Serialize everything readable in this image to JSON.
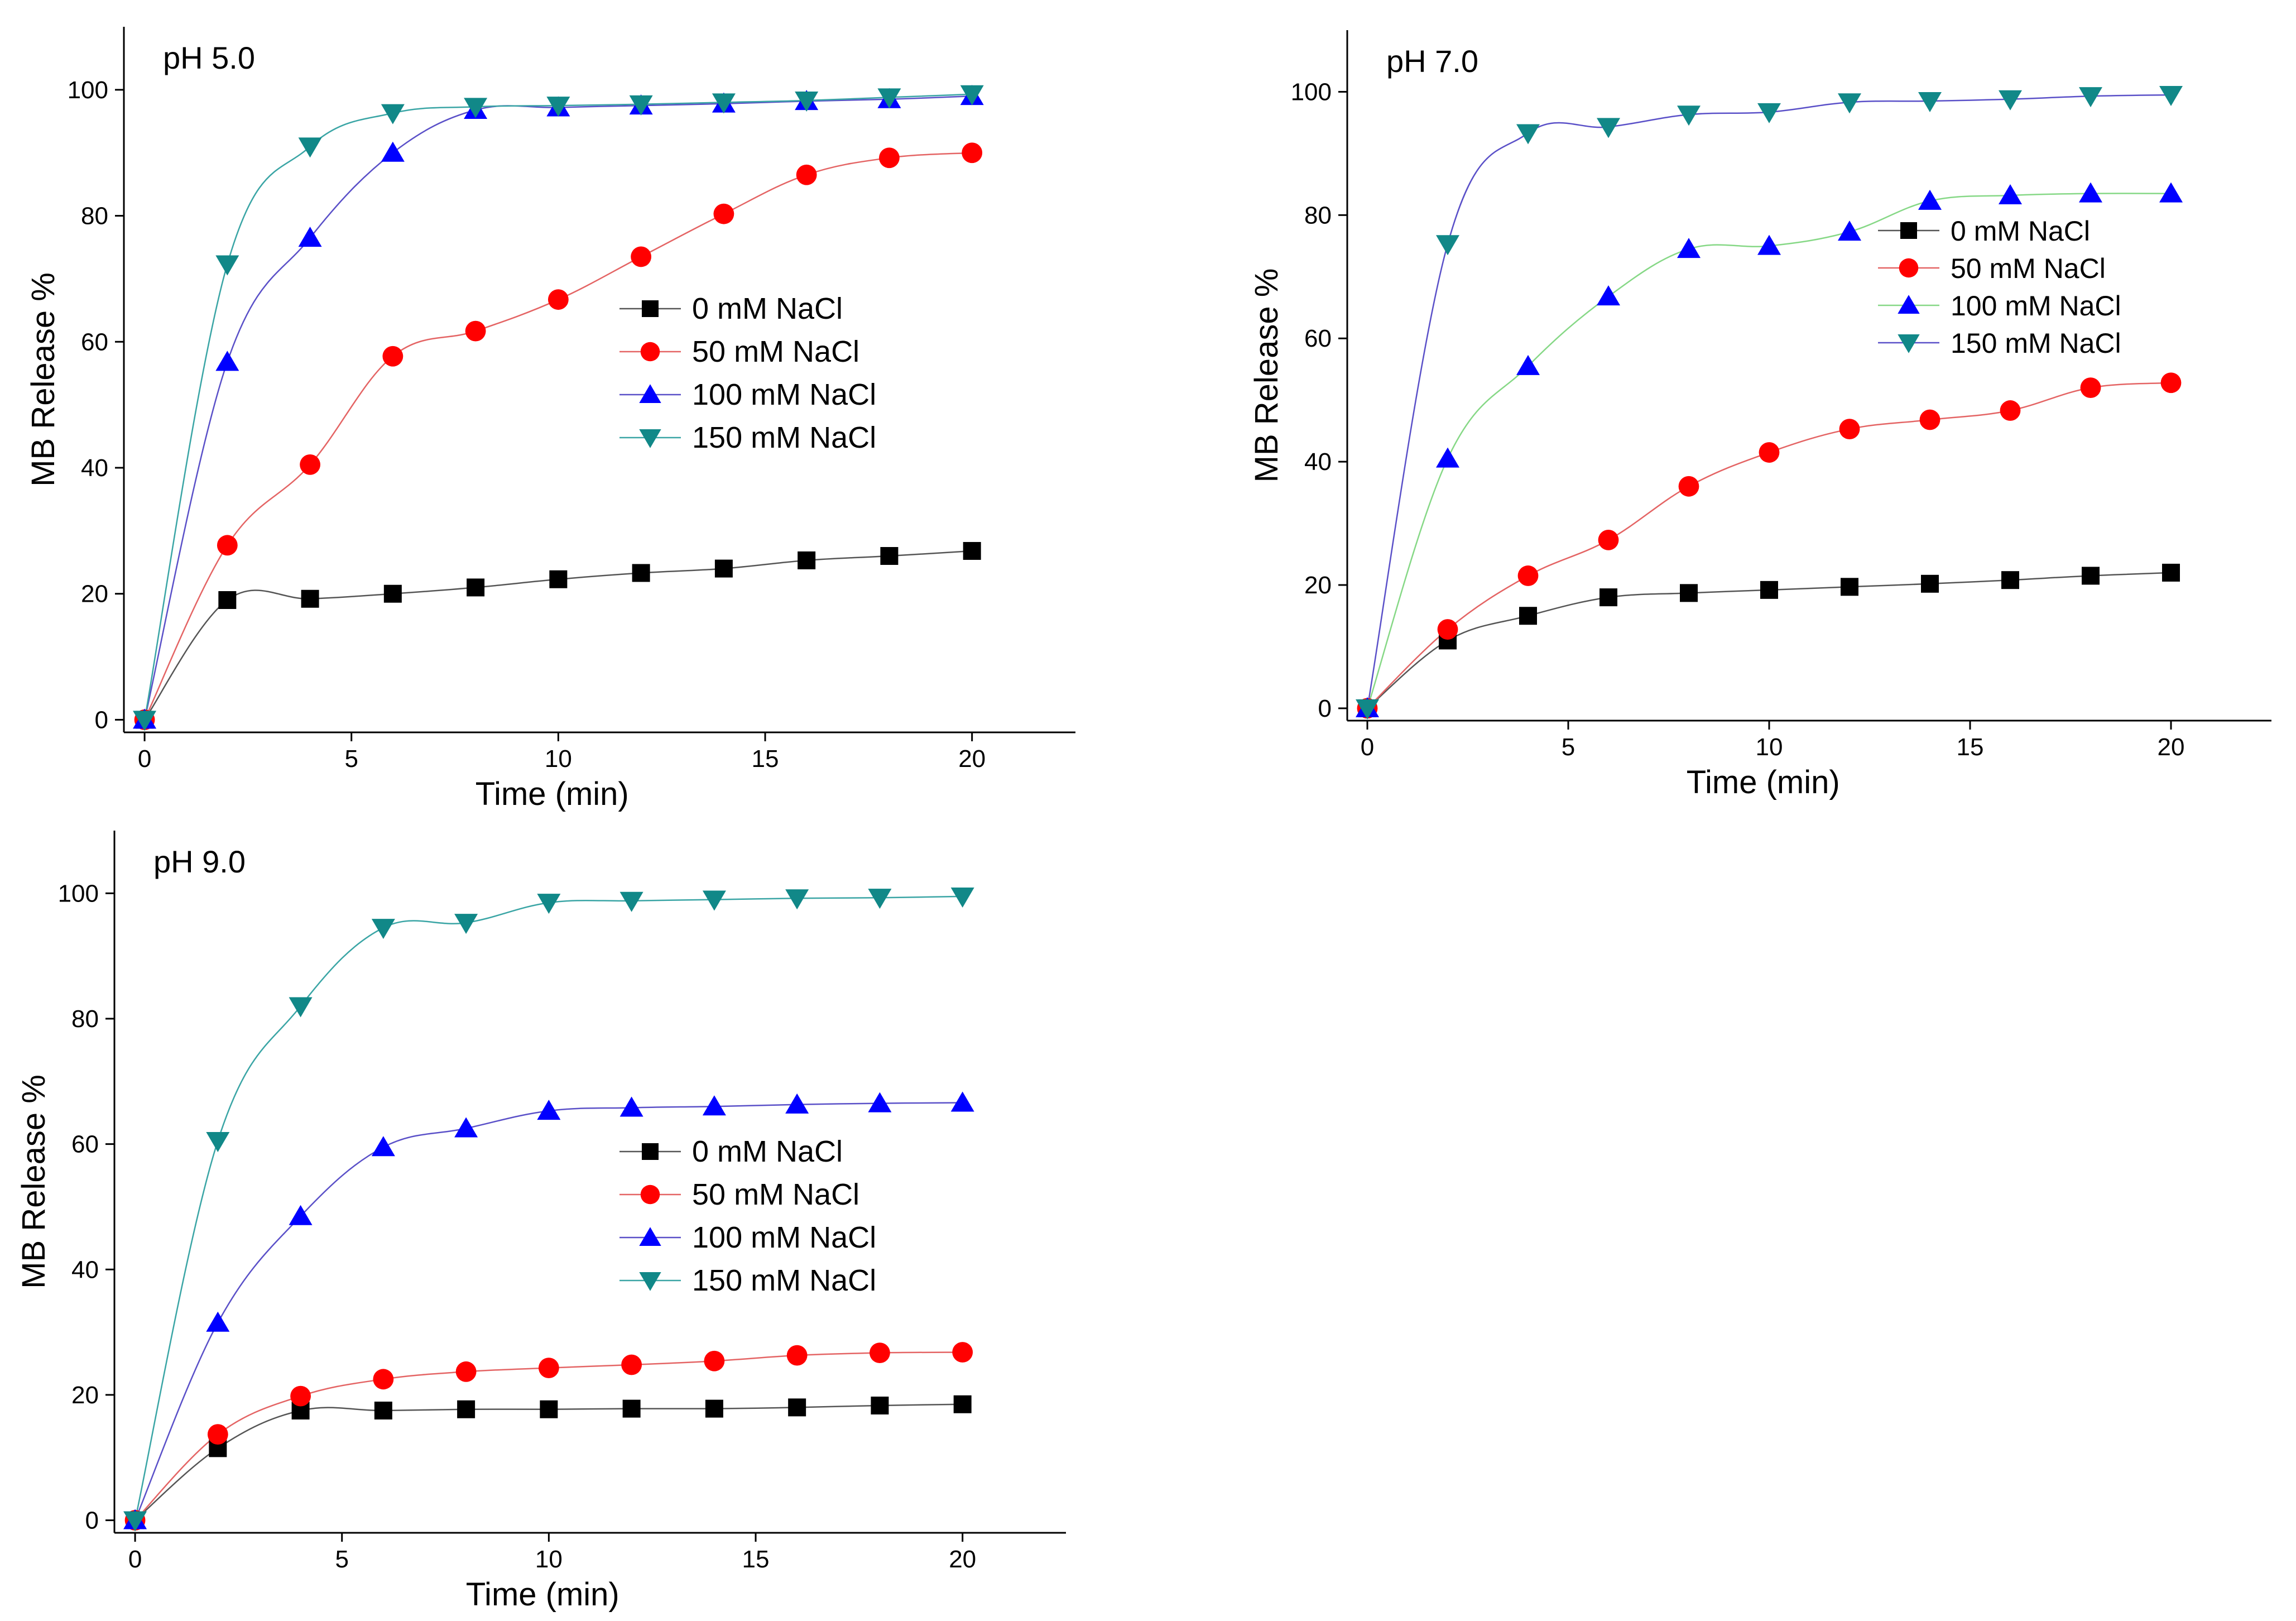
{
  "chart_data": [
    {
      "type": "line",
      "title": "pH 5.0",
      "xlabel": "Time (min)",
      "ylabel": "MB Release %",
      "xlim": [
        -0.5,
        22.5
      ],
      "ylim": [
        -2,
        110
      ],
      "xticks": [
        "0",
        "5",
        "10",
        "15",
        "20"
      ],
      "yticks": [
        "0",
        "20",
        "40",
        "60",
        "80",
        "100"
      ],
      "grid": false,
      "legend_position": "center-right",
      "x": [
        0,
        2,
        4,
        6,
        8,
        10,
        12,
        14,
        16,
        18,
        20
      ],
      "series": [
        {
          "name": "0 mM NaCl",
          "marker": "square",
          "color": "#000000",
          "line_color": "#555555",
          "values": [
            0,
            19,
            19.2,
            20,
            21,
            22.3,
            23.3,
            24,
            25.3,
            26,
            26.8
          ]
        },
        {
          "name": "50 mM NaCl",
          "marker": "circle",
          "color": "#ff0000",
          "line_color": "#e46464",
          "values": [
            0,
            27.7,
            40.5,
            57.7,
            61.7,
            66.7,
            73.5,
            80.3,
            86.5,
            89.2,
            90
          ]
        },
        {
          "name": "100 mM NaCl",
          "marker": "triangle-up",
          "color": "#0000ff",
          "line_color": "#5a50c8",
          "values": [
            0,
            56.8,
            76.5,
            90,
            96.8,
            97.2,
            97.5,
            97.8,
            98.2,
            98.5,
            99
          ]
        },
        {
          "name": "150 mM NaCl",
          "marker": "triangle-down",
          "color": "#118888",
          "line_color": "#3aa5a5",
          "values": [
            0,
            72.3,
            91,
            96.3,
            97.3,
            97.5,
            97.7,
            98,
            98.3,
            98.8,
            99.3
          ]
        }
      ]
    },
    {
      "type": "line",
      "title": "pH 7.0",
      "xlabel": "Time (min)",
      "ylabel": "MB Release %",
      "xlim": [
        -0.5,
        22.5
      ],
      "ylim": [
        -2,
        110
      ],
      "xticks": [
        "0",
        "5",
        "10",
        "15",
        "20"
      ],
      "yticks": [
        "0",
        "20",
        "40",
        "60",
        "80",
        "100"
      ],
      "grid": false,
      "legend_position": "top-right",
      "x": [
        0,
        2,
        4,
        6,
        8,
        10,
        12,
        14,
        16,
        18,
        20
      ],
      "series": [
        {
          "name": "0 mM NaCl",
          "marker": "square",
          "color": "#000000",
          "line_color": "#555555",
          "values": [
            0,
            11,
            15,
            18,
            18.7,
            19.2,
            19.7,
            20.2,
            20.8,
            21.5,
            22
          ]
        },
        {
          "name": "50 mM NaCl",
          "marker": "circle",
          "color": "#ff0000",
          "line_color": "#e46464",
          "values": [
            0,
            12.8,
            21.5,
            27.3,
            36,
            41.5,
            45.3,
            46.8,
            48.3,
            52,
            52.8
          ]
        },
        {
          "name": "100 mM NaCl",
          "marker": "triangle-up",
          "color": "#0000ff",
          "line_color": "#86d886",
          "values": [
            0,
            40.5,
            55.5,
            66.8,
            74.5,
            75,
            77.3,
            82.3,
            83.2,
            83.5,
            83.5
          ]
        },
        {
          "name": "150 mM NaCl",
          "marker": "triangle-down",
          "color": "#118888",
          "line_color": "#5a50c8",
          "values": [
            0,
            75.3,
            93.3,
            94.3,
            96.3,
            96.7,
            98.3,
            98.5,
            98.8,
            99.3,
            99.5
          ]
        }
      ]
    },
    {
      "type": "line",
      "title": "pH 9.0",
      "xlabel": "Time (min)",
      "ylabel": "MB Release %",
      "xlim": [
        -0.5,
        22.5
      ],
      "ylim": [
        -2,
        110
      ],
      "xticks": [
        "0",
        "5",
        "10",
        "15",
        "20"
      ],
      "yticks": [
        "0",
        "20",
        "40",
        "60",
        "80",
        "100"
      ],
      "grid": false,
      "legend_position": "center-right",
      "x": [
        0,
        2,
        4,
        6,
        8,
        10,
        12,
        14,
        16,
        18,
        20
      ],
      "series": [
        {
          "name": "0 mM NaCl",
          "marker": "square",
          "color": "#000000",
          "line_color": "#555555",
          "values": [
            0,
            11.5,
            17.5,
            17.5,
            17.7,
            17.7,
            17.8,
            17.8,
            18,
            18.3,
            18.5
          ]
        },
        {
          "name": "50 mM NaCl",
          "marker": "circle",
          "color": "#ff0000",
          "line_color": "#e46464",
          "values": [
            0,
            13.7,
            19.8,
            22.5,
            23.7,
            24.3,
            24.8,
            25.4,
            26.3,
            26.7,
            26.8
          ]
        },
        {
          "name": "100 mM NaCl",
          "marker": "triangle-up",
          "color": "#0000ff",
          "line_color": "#5a50c8",
          "values": [
            0,
            31.5,
            48.5,
            59.5,
            62.5,
            65.3,
            65.8,
            66,
            66.3,
            66.5,
            66.6
          ]
        },
        {
          "name": "150 mM NaCl",
          "marker": "triangle-down",
          "color": "#118888",
          "line_color": "#3aa5a5",
          "values": [
            0,
            60.5,
            82,
            94.5,
            95.3,
            98.5,
            98.8,
            99,
            99.2,
            99.3,
            99.5
          ]
        }
      ]
    }
  ]
}
